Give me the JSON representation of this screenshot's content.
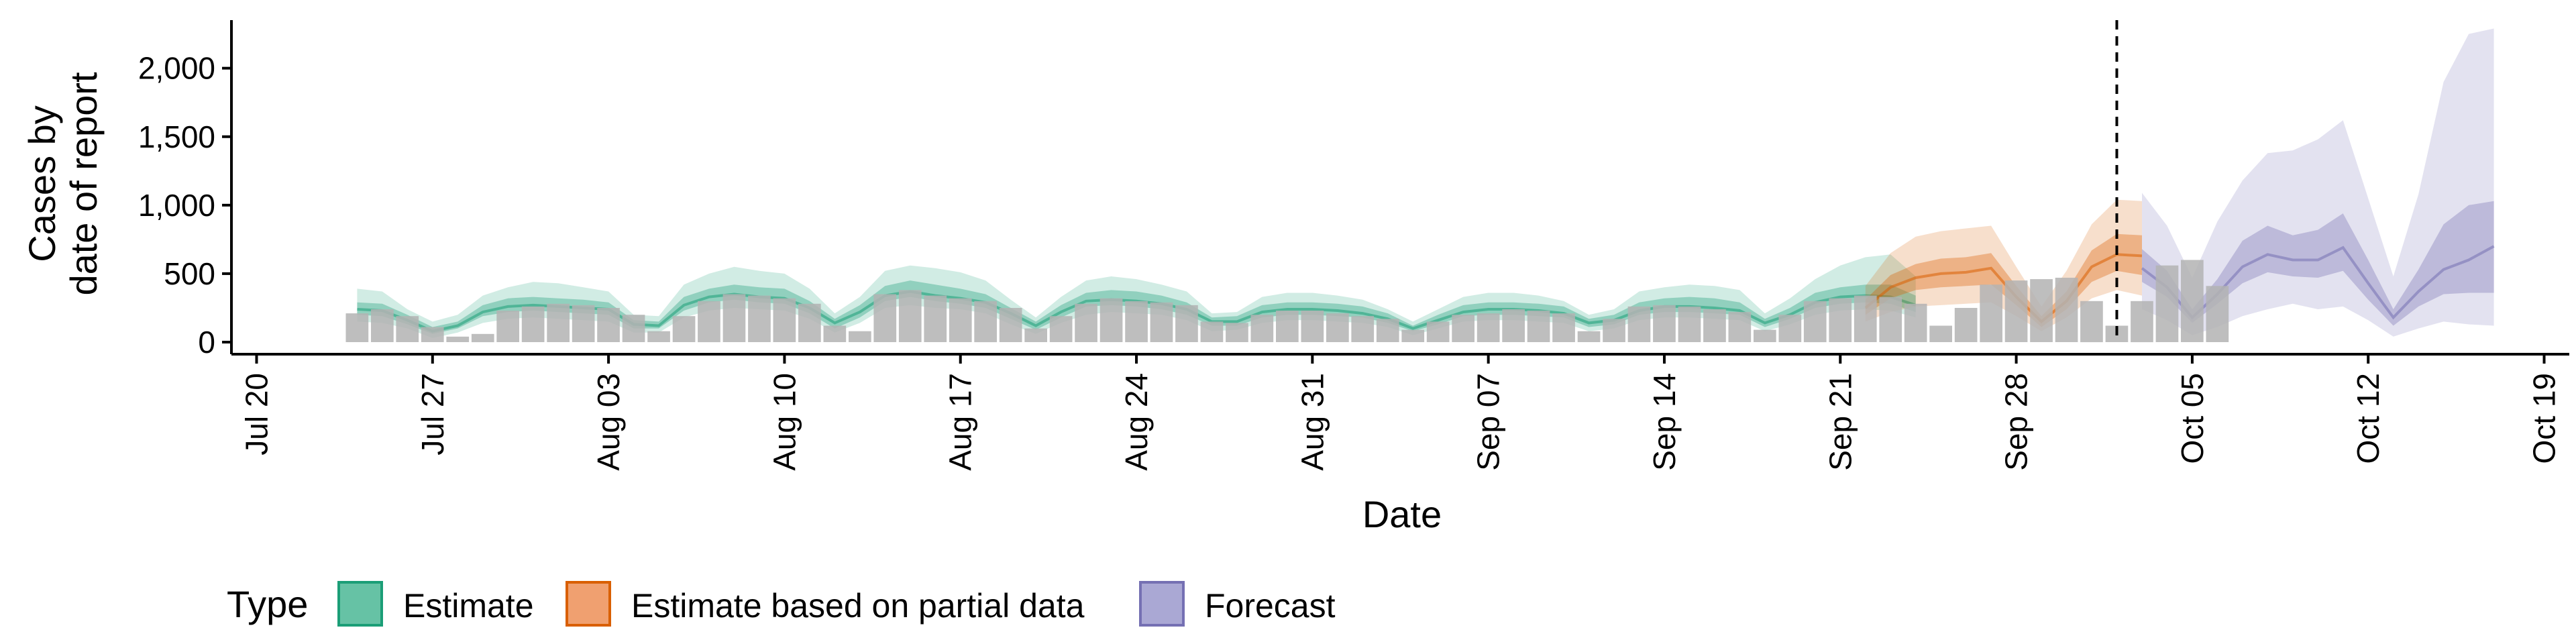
{
  "chart_data": {
    "type": "area",
    "title": "",
    "xlabel": "Date",
    "ylabel_lines": [
      "Cases by",
      "date of report"
    ],
    "ylim": [
      0,
      2400
    ],
    "yticks": [
      0,
      500,
      1000,
      1500,
      2000
    ],
    "ytick_labels": [
      "0",
      "500",
      "1,000",
      "1,500",
      "2,000"
    ],
    "xlim": [
      "2020-07-19",
      "2020-10-20"
    ],
    "xticks": [
      "2020-07-20",
      "2020-07-27",
      "2020-08-03",
      "2020-08-10",
      "2020-08-17",
      "2020-08-24",
      "2020-08-31",
      "2020-09-07",
      "2020-09-14",
      "2020-09-21",
      "2020-09-28",
      "2020-10-05",
      "2020-10-12",
      "2020-10-19"
    ],
    "xtick_labels": [
      "Jul 20",
      "Jul 27",
      "Aug 03",
      "Aug 10",
      "Aug 17",
      "Aug 24",
      "Aug 31",
      "Sep 07",
      "Sep 14",
      "Sep 21",
      "Sep 28",
      "Oct 05",
      "Oct 12",
      "Oct 19"
    ],
    "forecast_start_line": "2020-10-02",
    "legend": {
      "title": "Type",
      "position": "bottom",
      "entries": [
        {
          "label": "Estimate",
          "fill": "#66c2a5",
          "stroke": "#1b9e77"
        },
        {
          "label": "Estimate based on partial data",
          "fill": "#f0a070",
          "stroke": "#d95f02"
        },
        {
          "label": "Forecast",
          "fill": "#aaa8d4",
          "stroke": "#7570b3"
        }
      ]
    },
    "colors": {
      "estimate": "#1b9e77",
      "partial": "#d95f02",
      "forecast": "#7570b3",
      "bars": "#b3b3b3",
      "vline": "#000000"
    },
    "bars": {
      "start": "2020-07-24",
      "values": [
        210,
        240,
        190,
        110,
        40,
        60,
        230,
        260,
        280,
        270,
        250,
        200,
        80,
        190,
        300,
        350,
        340,
        320,
        280,
        120,
        80,
        350,
        380,
        340,
        320,
        300,
        250,
        100,
        190,
        280,
        320,
        300,
        290,
        270,
        150,
        140,
        200,
        230,
        230,
        210,
        190,
        170,
        90,
        150,
        200,
        210,
        240,
        230,
        210,
        80,
        170,
        260,
        270,
        260,
        240,
        220,
        90,
        200,
        300,
        320,
        340,
        330,
        280,
        120,
        250,
        420,
        450,
        460,
        470,
        300,
        120,
        300,
        560,
        600,
        410
      ]
    },
    "series": [
      {
        "name": "Estimate",
        "start": "2020-07-24",
        "median": [
          240,
          230,
          160,
          80,
          120,
          220,
          260,
          270,
          260,
          250,
          240,
          130,
          120,
          270,
          330,
          350,
          330,
          320,
          250,
          140,
          220,
          340,
          370,
          340,
          320,
          290,
          210,
          120,
          220,
          300,
          310,
          300,
          280,
          240,
          150,
          150,
          220,
          240,
          240,
          230,
          210,
          170,
          100,
          160,
          220,
          240,
          240,
          230,
          210,
          140,
          160,
          230,
          260,
          260,
          250,
          230,
          140,
          200,
          290,
          330,
          340,
          330,
          270
        ],
        "lower90": [
          150,
          140,
          100,
          30,
          70,
          140,
          170,
          180,
          170,
          160,
          150,
          70,
          70,
          180,
          230,
          250,
          240,
          230,
          170,
          70,
          140,
          250,
          270,
          250,
          240,
          210,
          130,
          60,
          140,
          200,
          220,
          210,
          200,
          160,
          80,
          90,
          140,
          160,
          160,
          150,
          140,
          110,
          50,
          100,
          150,
          160,
          160,
          150,
          140,
          80,
          100,
          160,
          180,
          180,
          170,
          160,
          80,
          130,
          200,
          230,
          240,
          230,
          180
        ],
        "upper90": [
          390,
          370,
          240,
          150,
          200,
          340,
          400,
          440,
          430,
          400,
          370,
          200,
          190,
          420,
          500,
          550,
          520,
          500,
          390,
          210,
          330,
          520,
          560,
          540,
          510,
          450,
          310,
          180,
          330,
          450,
          480,
          460,
          420,
          370,
          210,
          220,
          330,
          360,
          360,
          340,
          310,
          240,
          150,
          240,
          330,
          360,
          360,
          340,
          300,
          200,
          240,
          370,
          400,
          420,
          410,
          380,
          210,
          320,
          460,
          560,
          620,
          640,
          480
        ],
        "lower50": [
          200,
          190,
          130,
          60,
          100,
          190,
          220,
          230,
          220,
          210,
          200,
          100,
          100,
          230,
          290,
          310,
          290,
          280,
          210,
          100,
          180,
          300,
          330,
          300,
          280,
          250,
          170,
          90,
          180,
          260,
          270,
          260,
          240,
          200,
          120,
          120,
          180,
          200,
          200,
          190,
          180,
          140,
          80,
          130,
          190,
          200,
          200,
          190,
          180,
          110,
          130,
          200,
          220,
          220,
          210,
          200,
          110,
          170,
          250,
          280,
          290,
          280,
          220
        ],
        "upper50": [
          290,
          280,
          200,
          110,
          150,
          270,
          320,
          330,
          320,
          310,
          290,
          160,
          150,
          330,
          390,
          420,
          400,
          390,
          300,
          170,
          270,
          410,
          450,
          420,
          390,
          350,
          250,
          150,
          270,
          360,
          380,
          370,
          340,
          290,
          180,
          190,
          270,
          290,
          290,
          280,
          260,
          210,
          120,
          200,
          270,
          290,
          290,
          280,
          260,
          170,
          200,
          290,
          320,
          330,
          320,
          290,
          170,
          250,
          360,
          400,
          420,
          420,
          340
        ]
      },
      {
        "name": "Estimate based on partial data",
        "start": "2020-09-22",
        "median": [
          250,
          400,
          470,
          500,
          510,
          540,
          330,
          150,
          300,
          550,
          640,
          630
        ],
        "lower90": [
          150,
          220,
          260,
          270,
          280,
          290,
          190,
          80,
          180,
          320,
          380,
          340
        ],
        "upper90": [
          410,
          650,
          770,
          810,
          830,
          850,
          550,
          260,
          520,
          860,
          1040,
          1030
        ],
        "lower50": [
          200,
          320,
          380,
          400,
          410,
          420,
          270,
          110,
          240,
          440,
          520,
          490
        ],
        "upper50": [
          310,
          490,
          570,
          610,
          620,
          650,
          410,
          190,
          370,
          670,
          790,
          780
        ]
      },
      {
        "name": "Forecast",
        "start": "2020-10-03",
        "median": [
          540,
          400,
          180,
          350,
          550,
          640,
          600,
          600,
          690,
          430,
          180,
          370,
          530,
          600,
          700
        ],
        "lower90": [
          240,
          160,
          50,
          110,
          190,
          240,
          280,
          240,
          260,
          160,
          40,
          100,
          150,
          130,
          120
        ],
        "upper90": [
          1090,
          850,
          470,
          880,
          1180,
          1380,
          1400,
          1480,
          1620,
          1050,
          480,
          1080,
          1900,
          2250,
          2290
        ],
        "lower50": [
          440,
          330,
          140,
          280,
          430,
          510,
          480,
          470,
          520,
          310,
          120,
          260,
          350,
          360,
          360
        ],
        "upper50": [
          680,
          520,
          240,
          460,
          740,
          850,
          780,
          820,
          940,
          600,
          240,
          530,
          860,
          1000,
          1030
        ]
      }
    ]
  }
}
